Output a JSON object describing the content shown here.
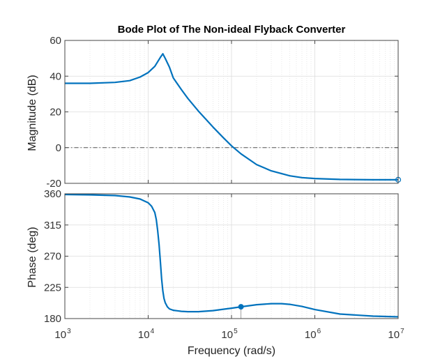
{
  "chart_data": {
    "type": "line",
    "title": "Bode Plot of The Non-ideal Flyback Converter",
    "xlabel": "Frequency  (rad/s)",
    "x_scale": "log",
    "xlim": [
      1000,
      10000000
    ],
    "x_tick_labels": [
      {
        "base": "10",
        "exp": "3"
      },
      {
        "base": "10",
        "exp": "4"
      },
      {
        "base": "10",
        "exp": "5"
      },
      {
        "base": "10",
        "exp": "6"
      },
      {
        "base": "10",
        "exp": "7"
      }
    ],
    "grid": true,
    "line_color": "#0072BD",
    "reference_line_color": "#555555",
    "plots": [
      {
        "name": "magnitude",
        "ylabel": "Magnitude (dB)",
        "ylim": [
          -20,
          60
        ],
        "y_ticks": [
          "-20",
          "0",
          "20",
          "40",
          "60"
        ],
        "reference_line": 0,
        "x": [
          1000,
          2000,
          4000,
          6000,
          8000,
          10000,
          12000,
          14000,
          15000,
          16000,
          18000,
          20000,
          25000,
          30000,
          40000,
          60000,
          80000,
          100000,
          130000,
          200000,
          300000,
          500000,
          700000,
          1000000,
          2000000,
          5000000,
          10000000
        ],
        "y": [
          36,
          36,
          36.5,
          37.5,
          39.5,
          42,
          45.5,
          50.5,
          52.5,
          50,
          45,
          39,
          32.5,
          27.5,
          20.5,
          11.5,
          5.5,
          1,
          -3.5,
          -9.5,
          -13,
          -15.8,
          -16.8,
          -17.3,
          -17.8,
          -18,
          -18
        ],
        "markers": [
          {
            "x": 10000000,
            "y": -18,
            "style": "open"
          }
        ]
      },
      {
        "name": "phase",
        "ylabel": "Phase (deg)",
        "ylim": [
          180,
          360
        ],
        "y_ticks": [
          "180",
          "225",
          "270",
          "315",
          "360"
        ],
        "reference_line": 180,
        "x": [
          1000,
          2000,
          4000,
          6000,
          8000,
          10000,
          11000,
          12000,
          12500,
          13000,
          13500,
          14000,
          14500,
          15000,
          15500,
          16000,
          17000,
          18000,
          20000,
          25000,
          30000,
          40000,
          60000,
          80000,
          100000,
          130000,
          200000,
          300000,
          400000,
          500000,
          700000,
          1000000,
          2000000,
          5000000,
          10000000
        ],
        "y": [
          359,
          358.5,
          357.5,
          355.5,
          352.5,
          347,
          342,
          333,
          323,
          307,
          287,
          262,
          237,
          220,
          209,
          203,
          197,
          194,
          192,
          190.5,
          190,
          190,
          191.5,
          193.5,
          195,
          197,
          200,
          201.5,
          201.5,
          200.5,
          197.5,
          193,
          186.5,
          183.5,
          182.5
        ],
        "markers": [
          {
            "x": 130000,
            "y": 197,
            "style": "filled"
          }
        ]
      }
    ]
  }
}
